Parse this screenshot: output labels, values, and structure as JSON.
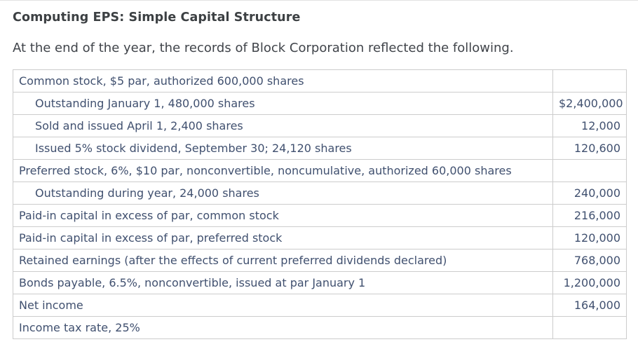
{
  "header": {
    "title": "Computing EPS: Simple Capital Structure",
    "intro": "At the end of the year, the records of Block Corporation reflected the following."
  },
  "table": {
    "rows": [
      {
        "label": "Common stock, $5 par, authorized 600,000 shares",
        "value": "",
        "indent": false
      },
      {
        "label": "Outstanding January 1, 480,000 shares",
        "value": "$2,400,000",
        "indent": true
      },
      {
        "label": "Sold and issued April 1, 2,400 shares",
        "value": "12,000",
        "indent": true
      },
      {
        "label": "Issued 5% stock dividend, September 30; 24,120 shares",
        "value": "120,600",
        "indent": true
      },
      {
        "label": "Preferred stock, 6%, $10 par, nonconvertible, noncumulative, authorized 60,000 shares",
        "value": "",
        "indent": false
      },
      {
        "label": "Outstanding during year, 24,000 shares",
        "value": "240,000",
        "indent": true
      },
      {
        "label": "Paid-in capital in excess of par, common stock",
        "value": "216,000",
        "indent": false
      },
      {
        "label": "Paid-in capital in excess of par, preferred stock",
        "value": "120,000",
        "indent": false
      },
      {
        "label": "Retained earnings (after the effects of current preferred dividends declared)",
        "value": "768,000",
        "indent": false
      },
      {
        "label": "Bonds payable, 6.5%, nonconvertible, issued at par January 1",
        "value": "1,200,000",
        "indent": false
      },
      {
        "label": "Net income",
        "value": "164,000",
        "indent": false
      },
      {
        "label": "Income tax rate, 25%",
        "value": "",
        "indent": false
      }
    ]
  },
  "colors": {
    "table_text": "#40506f",
    "title_text": "#3c4043",
    "body_text": "#40444a",
    "border": "#cccccc"
  }
}
